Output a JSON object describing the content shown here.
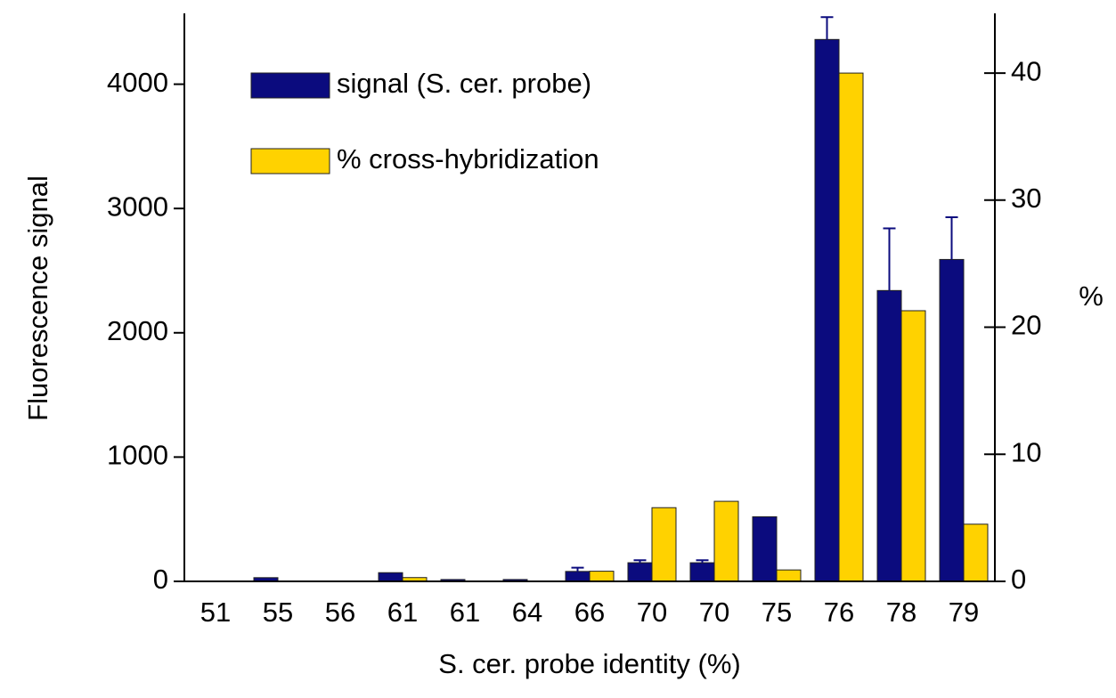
{
  "chart_data": {
    "type": "bar",
    "x_label": "S. cer. probe identity (%)",
    "y_label": "Fluorescence signal",
    "y2_label": "%",
    "categories": [
      "51",
      "55",
      "56",
      "61",
      "61",
      "64",
      "66",
      "70",
      "70",
      "75",
      "76",
      "78",
      "79"
    ],
    "series": [
      {
        "name": "signal (S. cer. probe)",
        "color": "#0b0b7e",
        "values": [
          0,
          30,
          0,
          70,
          15,
          15,
          80,
          150,
          150,
          520,
          4360,
          2340,
          2590
        ],
        "errors": [
          null,
          null,
          null,
          null,
          null,
          null,
          30,
          20,
          20,
          null,
          180,
          500,
          340
        ]
      },
      {
        "name": "% cross-hybridization",
        "color": "#ffd200",
        "axis": "y2",
        "values": [
          0,
          0,
          0,
          0.3,
          0,
          0,
          0.8,
          5.8,
          6.3,
          0.9,
          40,
          21.3,
          4.5
        ]
      }
    ],
    "ylim": [
      0,
      4570
    ],
    "yticks": [
      0,
      1000,
      2000,
      3000,
      4000
    ],
    "y2lim": [
      0,
      44.7
    ],
    "y2ticks": [
      0,
      10,
      20,
      30,
      40
    ],
    "legend": "top-left"
  }
}
